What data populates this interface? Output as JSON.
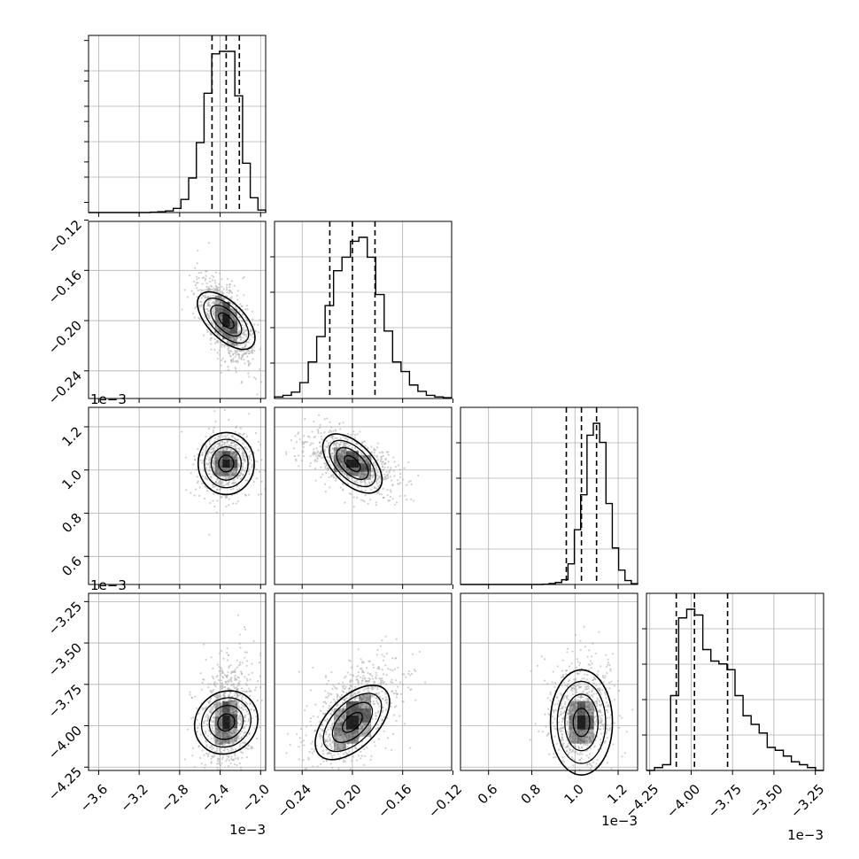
{
  "chart_data": {
    "type": "corner",
    "grid": true,
    "colors": {
      "hist": "#000000",
      "grid": "#b0b0b0",
      "points": "#aaaaaa",
      "contours": "#000000",
      "density": "#000000"
    },
    "parameters": [
      {
        "ticks": [
          -3.6,
          -3.2,
          -2.8,
          -2.4,
          -2.0
        ],
        "tick_labels": [
          "−3.6",
          "−3.2",
          "−2.8",
          "−2.4",
          "−2.0"
        ],
        "offset": "1e−3",
        "range": [
          -3.7,
          -1.95
        ],
        "quantiles": [
          -2.48,
          -2.34,
          -2.21
        ]
      },
      {
        "ticks": [
          -0.24,
          -0.2,
          -0.16,
          -0.12
        ],
        "tick_labels": [
          "−0.24",
          "−0.20",
          "−0.16",
          "−0.12"
        ],
        "offset": "1e−3",
        "range": [
          -0.262,
          -0.121
        ],
        "quantiles": [
          -0.218,
          -0.2,
          -0.182
        ]
      },
      {
        "ticks": [
          0.6,
          0.8,
          1.0,
          1.2
        ],
        "tick_labels": [
          "0.6",
          "0.8",
          "1.0",
          "1.2"
        ],
        "offset": "1e−3",
        "range": [
          0.47,
          1.29
        ],
        "quantiles": [
          0.96,
          1.03,
          1.1
        ]
      },
      {
        "ticks": [
          -4.25,
          -4.0,
          -3.75,
          -3.5,
          -3.25
        ],
        "tick_labels": [
          "−4.25",
          "−4.00",
          "−3.75",
          "−3.50",
          "−3.25"
        ],
        "offset": "1e−3",
        "range": [
          -4.27,
          -3.2
        ],
        "quantiles": [
          -4.09,
          -3.98,
          -3.78
        ]
      }
    ],
    "histograms": [
      {
        "counts": [
          0,
          0,
          0,
          0,
          0,
          0,
          0,
          0,
          0.5,
          1,
          2,
          5,
          16,
          42,
          85,
          145,
          193,
          196,
          196,
          142,
          60,
          18,
          3
        ]
      },
      {
        "counts": [
          2,
          4,
          8,
          20,
          46,
          78,
          117,
          161,
          178,
          198,
          203,
          178,
          131,
          85,
          46,
          34,
          17,
          9,
          4,
          2,
          1
        ]
      },
      {
        "counts": [
          0,
          0,
          0,
          0,
          0,
          0,
          0,
          0,
          0,
          0,
          0,
          0,
          0,
          0.3,
          1.2,
          2.5,
          6,
          26,
          69,
          113,
          188,
          203,
          179,
          102,
          46,
          18,
          5,
          1
        ]
      },
      {
        "counts": [
          0,
          1,
          2,
          26,
          53,
          56,
          54,
          42,
          38,
          37,
          35,
          26,
          19,
          16,
          13,
          8,
          7,
          5,
          3,
          2,
          1,
          0
        ]
      }
    ]
  }
}
